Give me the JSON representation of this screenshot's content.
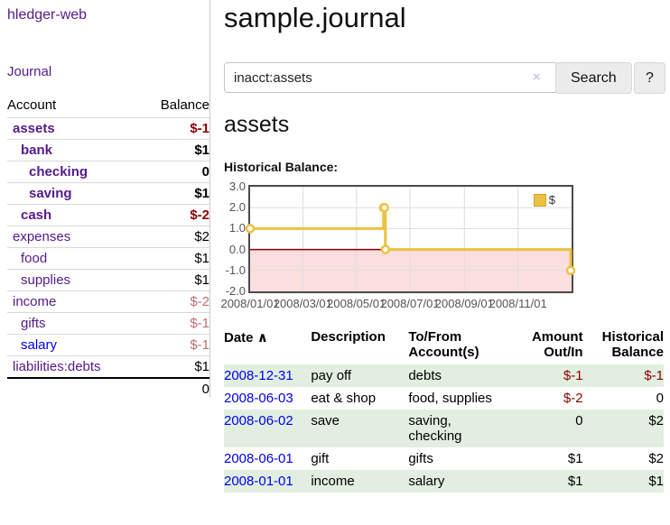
{
  "app": {
    "brand": "hledger-web",
    "nav_journal": "Journal"
  },
  "sidebar": {
    "headers": {
      "account": "Account",
      "balance": "Balance"
    },
    "accounts": [
      {
        "name": "assets",
        "balance": "$-1",
        "indent": 0,
        "bold": true,
        "neg": "strong"
      },
      {
        "name": "bank",
        "balance": "$1",
        "indent": 1,
        "bold": true,
        "neg": ""
      },
      {
        "name": "checking",
        "balance": "0",
        "indent": 2,
        "bold": true,
        "neg": ""
      },
      {
        "name": "saving",
        "balance": "$1",
        "indent": 2,
        "bold": true,
        "neg": ""
      },
      {
        "name": "cash",
        "balance": "$-2",
        "indent": 1,
        "bold": true,
        "neg": "strong"
      },
      {
        "name": "expenses",
        "balance": "$2",
        "indent": 0,
        "bold": false,
        "neg": ""
      },
      {
        "name": "food",
        "balance": "$1",
        "indent": 1,
        "bold": false,
        "neg": ""
      },
      {
        "name": "supplies",
        "balance": "$1",
        "indent": 1,
        "bold": false,
        "neg": ""
      },
      {
        "name": "income",
        "balance": "$-2",
        "indent": 0,
        "bold": false,
        "neg": "muted"
      },
      {
        "name": "gifts",
        "balance": "$-1",
        "indent": 1,
        "bold": false,
        "neg": "muted"
      },
      {
        "name": "salary",
        "balance": "$-1",
        "indent": 1,
        "bold": false,
        "neg": "muted",
        "link_style": "unvisited"
      },
      {
        "name": "liabilities:debts",
        "balance": "$1",
        "indent": 0,
        "bold": false,
        "neg": ""
      }
    ],
    "total": "0"
  },
  "header": {
    "title": "sample.journal"
  },
  "search": {
    "value": "inacct:assets",
    "clear_icon": "×",
    "button": "Search",
    "help_button": "?"
  },
  "account_page": {
    "title": "assets",
    "chart_label": "Historical Balance:"
  },
  "chart_data": {
    "type": "line",
    "step": true,
    "title": "Historical Balance:",
    "series": [
      {
        "name": "$",
        "color": "#edc240",
        "points": [
          [
            "2008-01-01",
            1
          ],
          [
            "2008-06-01",
            2
          ],
          [
            "2008-06-02",
            2
          ],
          [
            "2008-06-03",
            0
          ],
          [
            "2008-12-31",
            -1
          ]
        ]
      }
    ],
    "x_range": [
      "2008-01-01",
      "2009-01-01"
    ],
    "ylim": [
      -2.0,
      3.0
    ],
    "y_ticks": [
      3.0,
      2.0,
      1.0,
      0.0,
      -1.0,
      -2.0
    ],
    "x_ticks": [
      {
        "date": "2008-01-01",
        "label": "2008/01/01"
      },
      {
        "date": "2008-03-01",
        "label": "2008/03/01"
      },
      {
        "date": "2008-05-01",
        "label": "2008/05/01"
      },
      {
        "date": "2008-07-01",
        "label": "2008/07/01"
      },
      {
        "date": "2008-09-01",
        "label": "2008/09/01"
      },
      {
        "date": "2008-11-01",
        "label": "2008/11/01"
      }
    ],
    "grid": true,
    "negative_region_fill": "#fbdede",
    "zero_line_color": "#8b0000",
    "legend": {
      "label": "$",
      "position": "top-right"
    }
  },
  "register": {
    "sort_indicator": "∧",
    "headers": {
      "date": "Date",
      "description": "Description",
      "tofrom": "To/From Account(s)",
      "amount": "Amount Out/In",
      "balance": "Historical Balance"
    },
    "rows": [
      {
        "date": "2008-12-31",
        "description": "pay off",
        "accounts": "debts",
        "amount": "$-1",
        "balance": "$-1",
        "amount_neg": true,
        "balance_neg": true,
        "shaded": true
      },
      {
        "date": "2008-06-03",
        "description": "eat & shop",
        "accounts": "food, supplies",
        "amount": "$-2",
        "balance": "0",
        "amount_neg": true,
        "balance_neg": false,
        "shaded": false
      },
      {
        "date": "2008-06-02",
        "description": "save",
        "accounts": "saving, checking",
        "amount": "0",
        "balance": "$2",
        "amount_neg": false,
        "balance_neg": false,
        "shaded": true
      },
      {
        "date": "2008-06-01",
        "description": "gift",
        "accounts": "gifts",
        "amount": "$1",
        "balance": "$2",
        "amount_neg": false,
        "balance_neg": false,
        "shaded": false
      },
      {
        "date": "2008-01-01",
        "description": "income",
        "accounts": "salary",
        "amount": "$1",
        "balance": "$1",
        "amount_neg": false,
        "balance_neg": false,
        "shaded": true
      }
    ]
  },
  "colors": {
    "accent_purple": "#551a8b",
    "link_blue": "#0000ee",
    "negative_strong": "#8b0000",
    "negative_muted": "#bf6e6e",
    "row_shade_green": "#e2efe0",
    "chart_series_yellow": "#edc240",
    "chart_negative_fill": "#fbdede",
    "chart_zero_line": "#8b0000"
  }
}
